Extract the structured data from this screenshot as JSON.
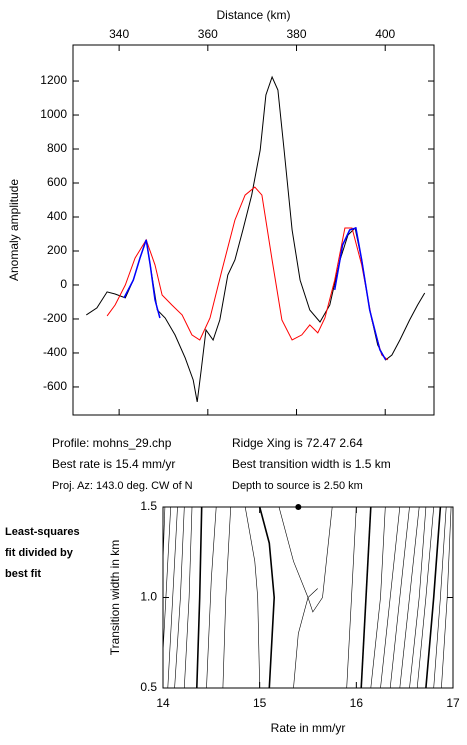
{
  "chart_data": [
    {
      "type": "line",
      "xlabel": "Distance (km)",
      "ylabel": "Anomaly amplitude",
      "xlim": [
        329.6,
        411
      ],
      "xticks": [
        340,
        360,
        380,
        400
      ],
      "ylim": [
        -765,
        1412
      ],
      "yticks": [
        -600,
        -400,
        -200,
        0,
        200,
        400,
        600,
        800,
        1000,
        1200
      ],
      "series": [
        {
          "color": "#000000",
          "x": [
            332.6,
            335,
            337.3,
            339.1,
            341.4,
            343.2,
            344.7,
            346.1,
            347,
            348.6,
            350.4,
            352.6,
            354.9,
            356.7,
            357.6,
            358.5,
            359.6,
            361.2,
            362.7,
            364.5,
            366.1,
            367.9,
            369.9,
            371.8,
            373.1,
            374.5,
            375.8,
            377.2,
            379,
            380.8,
            383,
            385.3,
            387.5,
            389.8,
            391.6,
            393.2,
            394.7,
            396.5,
            398.3,
            400.1,
            401.5,
            403.3,
            405.5,
            407.3,
            408.9
          ],
          "values": [
            -176,
            -135,
            -41,
            -53,
            -76,
            29,
            159,
            265,
            118,
            -147,
            -194,
            -294,
            -429,
            -559,
            -688,
            -500,
            -265,
            -324,
            -206,
            59,
            147,
            324,
            529,
            794,
            1118,
            1224,
            1147,
            794,
            324,
            29,
            -147,
            -218,
            -118,
            147,
            294,
            335,
            147,
            -147,
            -353,
            -441,
            -412,
            -324,
            -206,
            -118,
            -47
          ]
        },
        {
          "color": "#ff0000",
          "x": [
            337.3,
            339.1,
            341.4,
            343.6,
            346.1,
            348.1,
            349.7,
            351.9,
            354.2,
            356.4,
            358.2,
            360.5,
            363.2,
            366.1,
            368.4,
            370.6,
            372.2,
            374.5,
            376.7,
            379,
            381.2,
            383,
            384.8,
            386.4,
            388.6,
            390.9,
            392.5,
            394.7,
            397,
            399.2,
            400.6
          ],
          "values": [
            -182,
            -118,
            0,
            159,
            265,
            118,
            -59,
            -118,
            -176,
            -294,
            -324,
            -194,
            88,
            382,
            529,
            576,
            529,
            147,
            -206,
            -324,
            -294,
            -235,
            -282,
            -194,
            29,
            335,
            335,
            118,
            -206,
            -412,
            -441
          ]
        },
        {
          "color": "#0000ff",
          "x": [
            341.1,
            343.2,
            344.7,
            346.1,
            347,
            348.1,
            349.2,
            null,
            388.6,
            390.4,
            392,
            393.4,
            394.7,
            396.5,
            398.8,
            400.1
          ],
          "values": [
            -76,
            29,
            159,
            265,
            118,
            -88,
            -194,
            null,
            -29,
            235,
            324,
            335,
            147,
            -147,
            -382,
            -441
          ]
        }
      ],
      "annotations": [
        "Profile: mohns_29.chp",
        "Ridge Xing is 72.47 2.64",
        "Best rate is 15.4 mm/yr",
        "Best transition width is 1.5 km",
        "Proj. Az: 143.0 deg. CW of N",
        "Depth to source is   2.50 km"
      ]
    },
    {
      "type": "contour",
      "xlabel": "Rate in mm/yr",
      "ylabel": "Transition width in km",
      "annotation": [
        "Least-squares",
        "fit divided by",
        "best fit"
      ],
      "xlim": [
        14,
        17
      ],
      "xticks": [
        14,
        15,
        16,
        17
      ],
      "ylim": [
        0.5,
        1.5
      ],
      "yticks": [
        0.5,
        {
          "value": 1,
          "label": "1.0"
        },
        1.5
      ],
      "color": "#000000",
      "series": [
        {
          "x": [
            14.02,
            14.0
          ],
          "values": [
            1.5,
            1.2
          ]
        },
        {
          "x": [
            14.08,
            14.03,
            14.0
          ],
          "values": [
            1.5,
            1.0,
            0.7
          ]
        },
        {
          "x": [
            14.15,
            14.1,
            14.05
          ],
          "values": [
            1.5,
            1.0,
            0.5
          ]
        },
        {
          "x": [
            14.22,
            14.18,
            14.12
          ],
          "values": [
            1.5,
            1.0,
            0.5
          ]
        },
        {
          "x": [
            14.3,
            14.27,
            14.22
          ],
          "values": [
            1.5,
            1.0,
            0.5
          ]
        },
        {
          "x": [
            14.4,
            14.38,
            14.35
          ],
          "values": [
            1.5,
            1.0,
            0.5
          ],
          "linewidth": 1.6
        },
        {
          "x": [
            14.55,
            14.5,
            14.45
          ],
          "values": [
            1.5,
            1.1,
            0.5
          ]
        },
        {
          "x": [
            14.7,
            14.65,
            14.62
          ],
          "values": [
            1.5,
            1.0,
            0.5
          ]
        },
        {
          "x": [
            14.85,
            14.95,
            14.98,
            15.0
          ],
          "values": [
            1.5,
            1.2,
            1.0,
            0.5
          ]
        },
        {
          "x": [
            15.0,
            15.1,
            15.15,
            15.1
          ],
          "values": [
            1.5,
            1.3,
            1.0,
            0.5
          ],
          "linewidth": 1.6
        },
        {
          "x": [
            15.2,
            15.35,
            15.5,
            15.55,
            15.65,
            15.75
          ],
          "values": [
            1.5,
            1.2,
            1.0,
            0.92,
            1.0,
            1.5
          ]
        },
        {
          "x": [
            15.35,
            15.4,
            15.5,
            15.6
          ],
          "values": [
            0.5,
            0.8,
            1.0,
            1.05
          ]
        },
        {
          "x": [
            15.9,
            15.95,
            16.0
          ],
          "values": [
            0.5,
            1.0,
            1.5
          ]
        },
        {
          "x": [
            16.05,
            16.1,
            16.15
          ],
          "values": [
            0.5,
            1.0,
            1.5
          ],
          "linewidth": 1.6
        },
        {
          "x": [
            16.15,
            16.25,
            16.3
          ],
          "values": [
            0.5,
            1.0,
            1.5
          ]
        },
        {
          "x": [
            16.25,
            16.35,
            16.45
          ],
          "values": [
            0.5,
            1.0,
            1.5
          ]
        },
        {
          "x": [
            16.35,
            16.45,
            16.55
          ],
          "values": [
            0.5,
            1.0,
            1.5
          ]
        },
        {
          "x": [
            16.45,
            16.55,
            16.65
          ],
          "values": [
            0.5,
            1.0,
            1.5
          ]
        },
        {
          "x": [
            16.55,
            16.65,
            16.72
          ],
          "values": [
            0.5,
            1.0,
            1.5
          ]
        },
        {
          "x": [
            16.63,
            16.72,
            16.8
          ],
          "values": [
            0.5,
            1.0,
            1.5
          ]
        },
        {
          "x": [
            16.72,
            16.8,
            16.87
          ],
          "values": [
            0.5,
            1.0,
            1.5
          ],
          "linewidth": 1.6
        },
        {
          "x": [
            16.8,
            16.87,
            16.93
          ],
          "values": [
            0.5,
            1.0,
            1.5
          ]
        },
        {
          "x": [
            16.88,
            16.94,
            16.98
          ],
          "values": [
            0.5,
            1.0,
            1.5
          ]
        }
      ],
      "points": {
        "x": [
          15.4
        ],
        "values": [
          1.5
        ]
      }
    }
  ]
}
